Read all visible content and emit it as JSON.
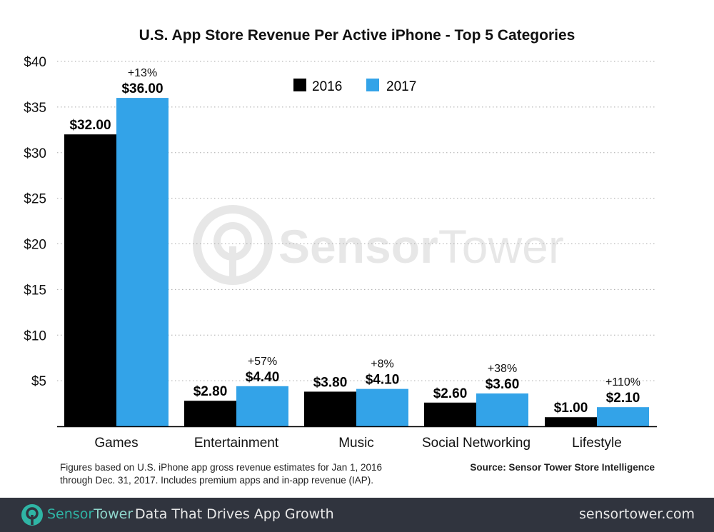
{
  "chart_data": {
    "type": "bar",
    "title": "U.S. App Store Revenue Per Active iPhone - Top 5 Categories",
    "categories": [
      "Games",
      "Entertainment",
      "Music",
      "Social Networking",
      "Lifestyle"
    ],
    "series": [
      {
        "name": "2016",
        "color": "#000000",
        "values": [
          32.0,
          2.8,
          3.8,
          2.6,
          1.0
        ],
        "labels": [
          "$32.00",
          "$2.80",
          "$3.80",
          "$2.60",
          "$1.00"
        ]
      },
      {
        "name": "2017",
        "color": "#33a3e8",
        "values": [
          36.0,
          4.4,
          4.1,
          3.6,
          2.1
        ],
        "labels": [
          "$36.00",
          "$4.40",
          "$4.10",
          "$3.60",
          "$2.10"
        ]
      }
    ],
    "growth_labels": [
      "+13%",
      "+57%",
      "+8%",
      "+38%",
      "+110%"
    ],
    "ylim": [
      0,
      40
    ],
    "yticks": [
      5,
      10,
      15,
      20,
      25,
      30,
      35,
      40
    ],
    "ytick_labels": [
      "$5",
      "$10",
      "$15",
      "$20",
      "$25",
      "$30",
      "$35",
      "$40"
    ],
    "grid": "horizontal dotted",
    "legend": "top-center",
    "xlabel": "",
    "ylabel": ""
  },
  "footnote": {
    "line1": "Figures based on U.S. iPhone app gross revenue estimates for Jan 1, 2016",
    "line2": "through Dec. 31, 2017. Includes premium apps and in-app revenue (IAP).",
    "source": "Source: Sensor Tower Store Intelligence"
  },
  "watermark": {
    "part1": "Sensor",
    "part2": "Tower"
  },
  "footer": {
    "brand_part1": "Sensor",
    "brand_part2": "Tower",
    "tagline": "Data That Drives App Growth",
    "url": "sensortower.com",
    "brand_color": "#2fb5a5"
  }
}
